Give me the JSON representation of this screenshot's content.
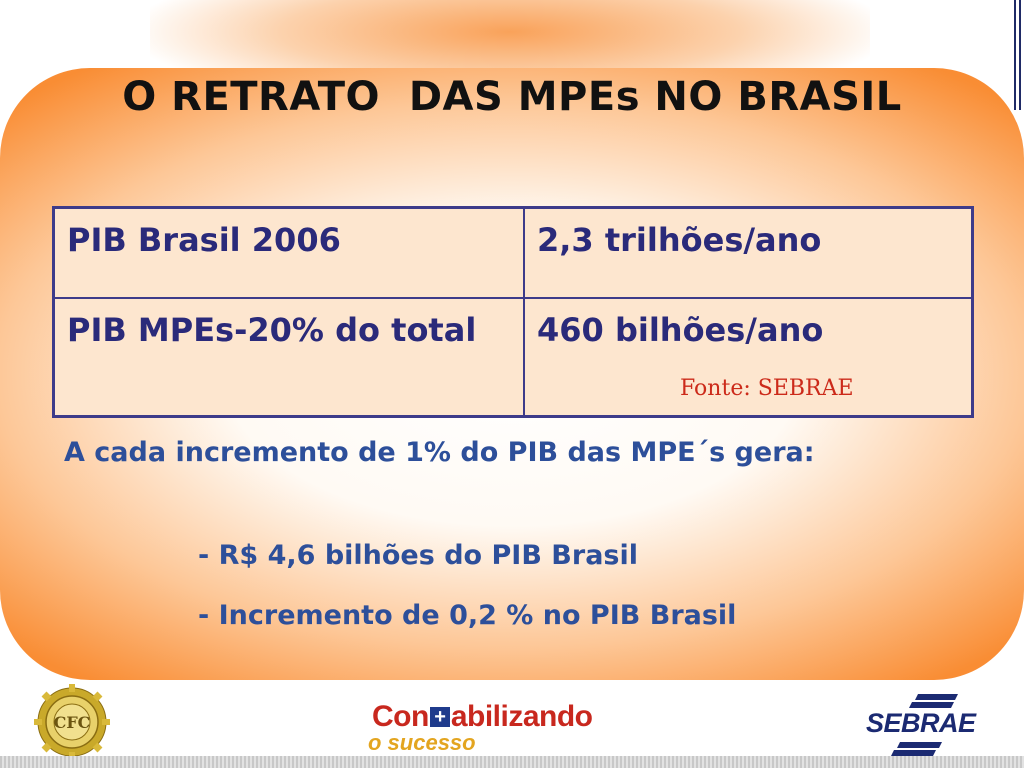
{
  "slide": {
    "title": "O RETRATO  DAS MPEs NO BRASIL"
  },
  "table": {
    "rows": [
      {
        "label": "PIB Brasil 2006",
        "value": "2,3 trilhões/ano"
      },
      {
        "label": "PIB MPEs-20% do total",
        "value": "460 bilhões/ano"
      }
    ],
    "source": "Fonte: SEBRAE"
  },
  "body": {
    "intro": "A cada incremento de 1% do PIB das MPE´s gera:",
    "bullets": [
      "- R$ 4,6 bilhões do PIB Brasil",
      "- Incremento de 0,2 % no PIB Brasil"
    ]
  },
  "footer": {
    "cfc_logo_text": "CFC",
    "contabilizando_pre": "Con",
    "contabilizando_plus": "+",
    "contabilizando_post": "abilizando",
    "contabilizando_sub": "o sucesso",
    "sebrae_logo_text": "SEBRAE"
  },
  "colors": {
    "title": "#111111",
    "table_text": "#2a2a7a",
    "body_text": "#2d4f9a",
    "source_text": "#cc2a1a",
    "panel_orange": "#f98d34"
  }
}
